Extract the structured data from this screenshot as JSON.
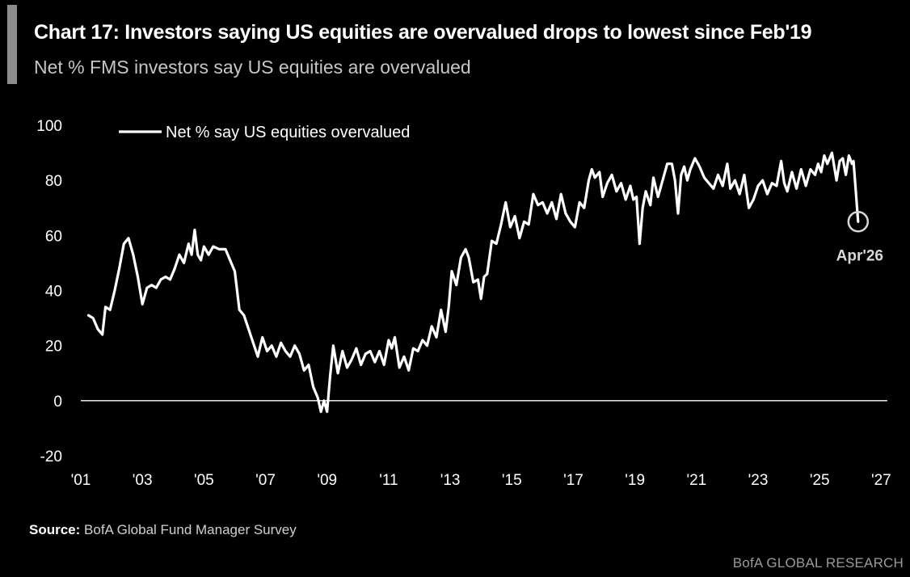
{
  "header": {
    "title": "Chart 17: Investors saying US equities are overvalued drops to lowest since Feb'19",
    "subtitle": "Net % FMS investors say US equities are overvalued"
  },
  "source": {
    "label": "Source:",
    "text": "BofA Global Fund Manager Survey"
  },
  "footer": {
    "brand": "BofA GLOBAL RESEARCH"
  },
  "colors": {
    "background": "#000000",
    "line": "#ffffff",
    "text": "#ffffff",
    "muted": "#c6c6c6",
    "highlight": "#d8d8d8"
  },
  "chart_data": {
    "type": "line",
    "xlabel": "",
    "ylabel": "",
    "xlim": [
      2001,
      2027.2
    ],
    "ylim": [
      -20,
      100
    ],
    "y_ticks": [
      100,
      80,
      60,
      40,
      20,
      0,
      -20
    ],
    "y_tick_labels": [
      "100",
      "80",
      "60",
      "40",
      "20",
      "0",
      "-20"
    ],
    "x_ticks": [
      2001,
      2003,
      2005,
      2007,
      2009,
      2011,
      2013,
      2015,
      2017,
      2019,
      2021,
      2023,
      2025,
      2027
    ],
    "x_tick_labels": [
      "'01",
      "'03",
      "'05",
      "'07",
      "'09",
      "'11",
      "'13",
      "'15",
      "'17",
      "'19",
      "'21",
      "'23",
      "'25",
      "'27"
    ],
    "zero_line": true,
    "grid": false,
    "legend": {
      "position": "top-left"
    },
    "annotation": {
      "text": "Apr'26",
      "x": 2026.25,
      "y": 65
    },
    "series": [
      {
        "name": "Net % say US equities overvalued",
        "points": [
          [
            2001.25,
            31
          ],
          [
            2001.4,
            30
          ],
          [
            2001.55,
            26
          ],
          [
            2001.7,
            24
          ],
          [
            2001.8,
            34
          ],
          [
            2001.95,
            33
          ],
          [
            2002.1,
            40
          ],
          [
            2002.25,
            48
          ],
          [
            2002.4,
            57
          ],
          [
            2002.55,
            59
          ],
          [
            2002.7,
            53
          ],
          [
            2002.85,
            45
          ],
          [
            2003.0,
            35
          ],
          [
            2003.15,
            41
          ],
          [
            2003.3,
            42
          ],
          [
            2003.45,
            41
          ],
          [
            2003.6,
            44
          ],
          [
            2003.75,
            45
          ],
          [
            2003.9,
            44
          ],
          [
            2004.05,
            48
          ],
          [
            2004.2,
            53
          ],
          [
            2004.35,
            50
          ],
          [
            2004.5,
            57
          ],
          [
            2004.6,
            53
          ],
          [
            2004.7,
            62
          ],
          [
            2004.8,
            53
          ],
          [
            2004.9,
            51
          ],
          [
            2005.0,
            56
          ],
          [
            2005.15,
            53
          ],
          [
            2005.3,
            56
          ],
          [
            2005.5,
            55
          ],
          [
            2005.7,
            55
          ],
          [
            2005.85,
            51
          ],
          [
            2006.0,
            47
          ],
          [
            2006.15,
            33
          ],
          [
            2006.3,
            31
          ],
          [
            2006.45,
            26
          ],
          [
            2006.6,
            21
          ],
          [
            2006.75,
            16
          ],
          [
            2006.9,
            23
          ],
          [
            2007.05,
            18
          ],
          [
            2007.2,
            20
          ],
          [
            2007.35,
            16
          ],
          [
            2007.5,
            21
          ],
          [
            2007.65,
            18
          ],
          [
            2007.8,
            16
          ],
          [
            2007.95,
            20
          ],
          [
            2008.1,
            17
          ],
          [
            2008.25,
            11
          ],
          [
            2008.4,
            13
          ],
          [
            2008.55,
            5
          ],
          [
            2008.7,
            1
          ],
          [
            2008.8,
            -4
          ],
          [
            2008.9,
            0
          ],
          [
            2009.0,
            -4
          ],
          [
            2009.1,
            9
          ],
          [
            2009.2,
            20
          ],
          [
            2009.35,
            10
          ],
          [
            2009.5,
            18
          ],
          [
            2009.65,
            12
          ],
          [
            2009.8,
            15
          ],
          [
            2009.95,
            19
          ],
          [
            2010.1,
            13
          ],
          [
            2010.25,
            17
          ],
          [
            2010.4,
            18
          ],
          [
            2010.55,
            14
          ],
          [
            2010.7,
            18
          ],
          [
            2010.85,
            13
          ],
          [
            2011.0,
            22
          ],
          [
            2011.1,
            19
          ],
          [
            2011.2,
            23
          ],
          [
            2011.35,
            12
          ],
          [
            2011.5,
            16
          ],
          [
            2011.65,
            11
          ],
          [
            2011.8,
            19
          ],
          [
            2011.95,
            18
          ],
          [
            2012.1,
            22
          ],
          [
            2012.25,
            20
          ],
          [
            2012.4,
            27
          ],
          [
            2012.55,
            23
          ],
          [
            2012.7,
            33
          ],
          [
            2012.85,
            25
          ],
          [
            2012.95,
            34
          ],
          [
            2013.05,
            47
          ],
          [
            2013.2,
            42
          ],
          [
            2013.35,
            52
          ],
          [
            2013.5,
            55
          ],
          [
            2013.6,
            52
          ],
          [
            2013.75,
            43
          ],
          [
            2013.9,
            44
          ],
          [
            2014.0,
            37
          ],
          [
            2014.1,
            45
          ],
          [
            2014.2,
            46
          ],
          [
            2014.35,
            58
          ],
          [
            2014.5,
            57
          ],
          [
            2014.65,
            64
          ],
          [
            2014.8,
            72
          ],
          [
            2014.95,
            63
          ],
          [
            2015.1,
            67
          ],
          [
            2015.25,
            59
          ],
          [
            2015.4,
            65
          ],
          [
            2015.55,
            64
          ],
          [
            2015.7,
            75
          ],
          [
            2015.85,
            71
          ],
          [
            2016.0,
            72
          ],
          [
            2016.15,
            68
          ],
          [
            2016.3,
            72
          ],
          [
            2016.45,
            66
          ],
          [
            2016.6,
            75
          ],
          [
            2016.75,
            68
          ],
          [
            2016.9,
            65
          ],
          [
            2017.05,
            63
          ],
          [
            2017.2,
            72
          ],
          [
            2017.35,
            70
          ],
          [
            2017.5,
            80
          ],
          [
            2017.6,
            84
          ],
          [
            2017.7,
            81
          ],
          [
            2017.85,
            83
          ],
          [
            2017.95,
            74
          ],
          [
            2018.1,
            79
          ],
          [
            2018.25,
            82
          ],
          [
            2018.4,
            76
          ],
          [
            2018.55,
            79
          ],
          [
            2018.7,
            73
          ],
          [
            2018.85,
            78
          ],
          [
            2018.95,
            73
          ],
          [
            2019.05,
            74
          ],
          [
            2019.15,
            57
          ],
          [
            2019.25,
            70
          ],
          [
            2019.35,
            76
          ],
          [
            2019.5,
            71
          ],
          [
            2019.6,
            81
          ],
          [
            2019.75,
            74
          ],
          [
            2019.9,
            80
          ],
          [
            2020.05,
            86
          ],
          [
            2020.2,
            86
          ],
          [
            2020.3,
            80
          ],
          [
            2020.4,
            68
          ],
          [
            2020.5,
            82
          ],
          [
            2020.6,
            85
          ],
          [
            2020.7,
            80
          ],
          [
            2020.8,
            84
          ],
          [
            2020.95,
            88
          ],
          [
            2021.1,
            85
          ],
          [
            2021.25,
            81
          ],
          [
            2021.4,
            79
          ],
          [
            2021.55,
            77
          ],
          [
            2021.7,
            82
          ],
          [
            2021.85,
            78
          ],
          [
            2022.0,
            86
          ],
          [
            2022.1,
            77
          ],
          [
            2022.25,
            80
          ],
          [
            2022.4,
            75
          ],
          [
            2022.55,
            82
          ],
          [
            2022.7,
            70
          ],
          [
            2022.85,
            73
          ],
          [
            2023.0,
            78
          ],
          [
            2023.15,
            80
          ],
          [
            2023.3,
            75
          ],
          [
            2023.45,
            79
          ],
          [
            2023.6,
            78
          ],
          [
            2023.75,
            87
          ],
          [
            2023.85,
            79
          ],
          [
            2023.95,
            76
          ],
          [
            2024.1,
            83
          ],
          [
            2024.25,
            77
          ],
          [
            2024.4,
            84
          ],
          [
            2024.55,
            78
          ],
          [
            2024.7,
            84
          ],
          [
            2024.85,
            82
          ],
          [
            2024.95,
            86
          ],
          [
            2025.05,
            83
          ],
          [
            2025.15,
            89
          ],
          [
            2025.25,
            86
          ],
          [
            2025.4,
            90
          ],
          [
            2025.55,
            80
          ],
          [
            2025.65,
            87
          ],
          [
            2025.75,
            88
          ],
          [
            2025.85,
            82
          ],
          [
            2025.95,
            89
          ],
          [
            2026.05,
            86
          ],
          [
            2026.1,
            87
          ],
          [
            2026.25,
            65
          ]
        ]
      }
    ]
  }
}
